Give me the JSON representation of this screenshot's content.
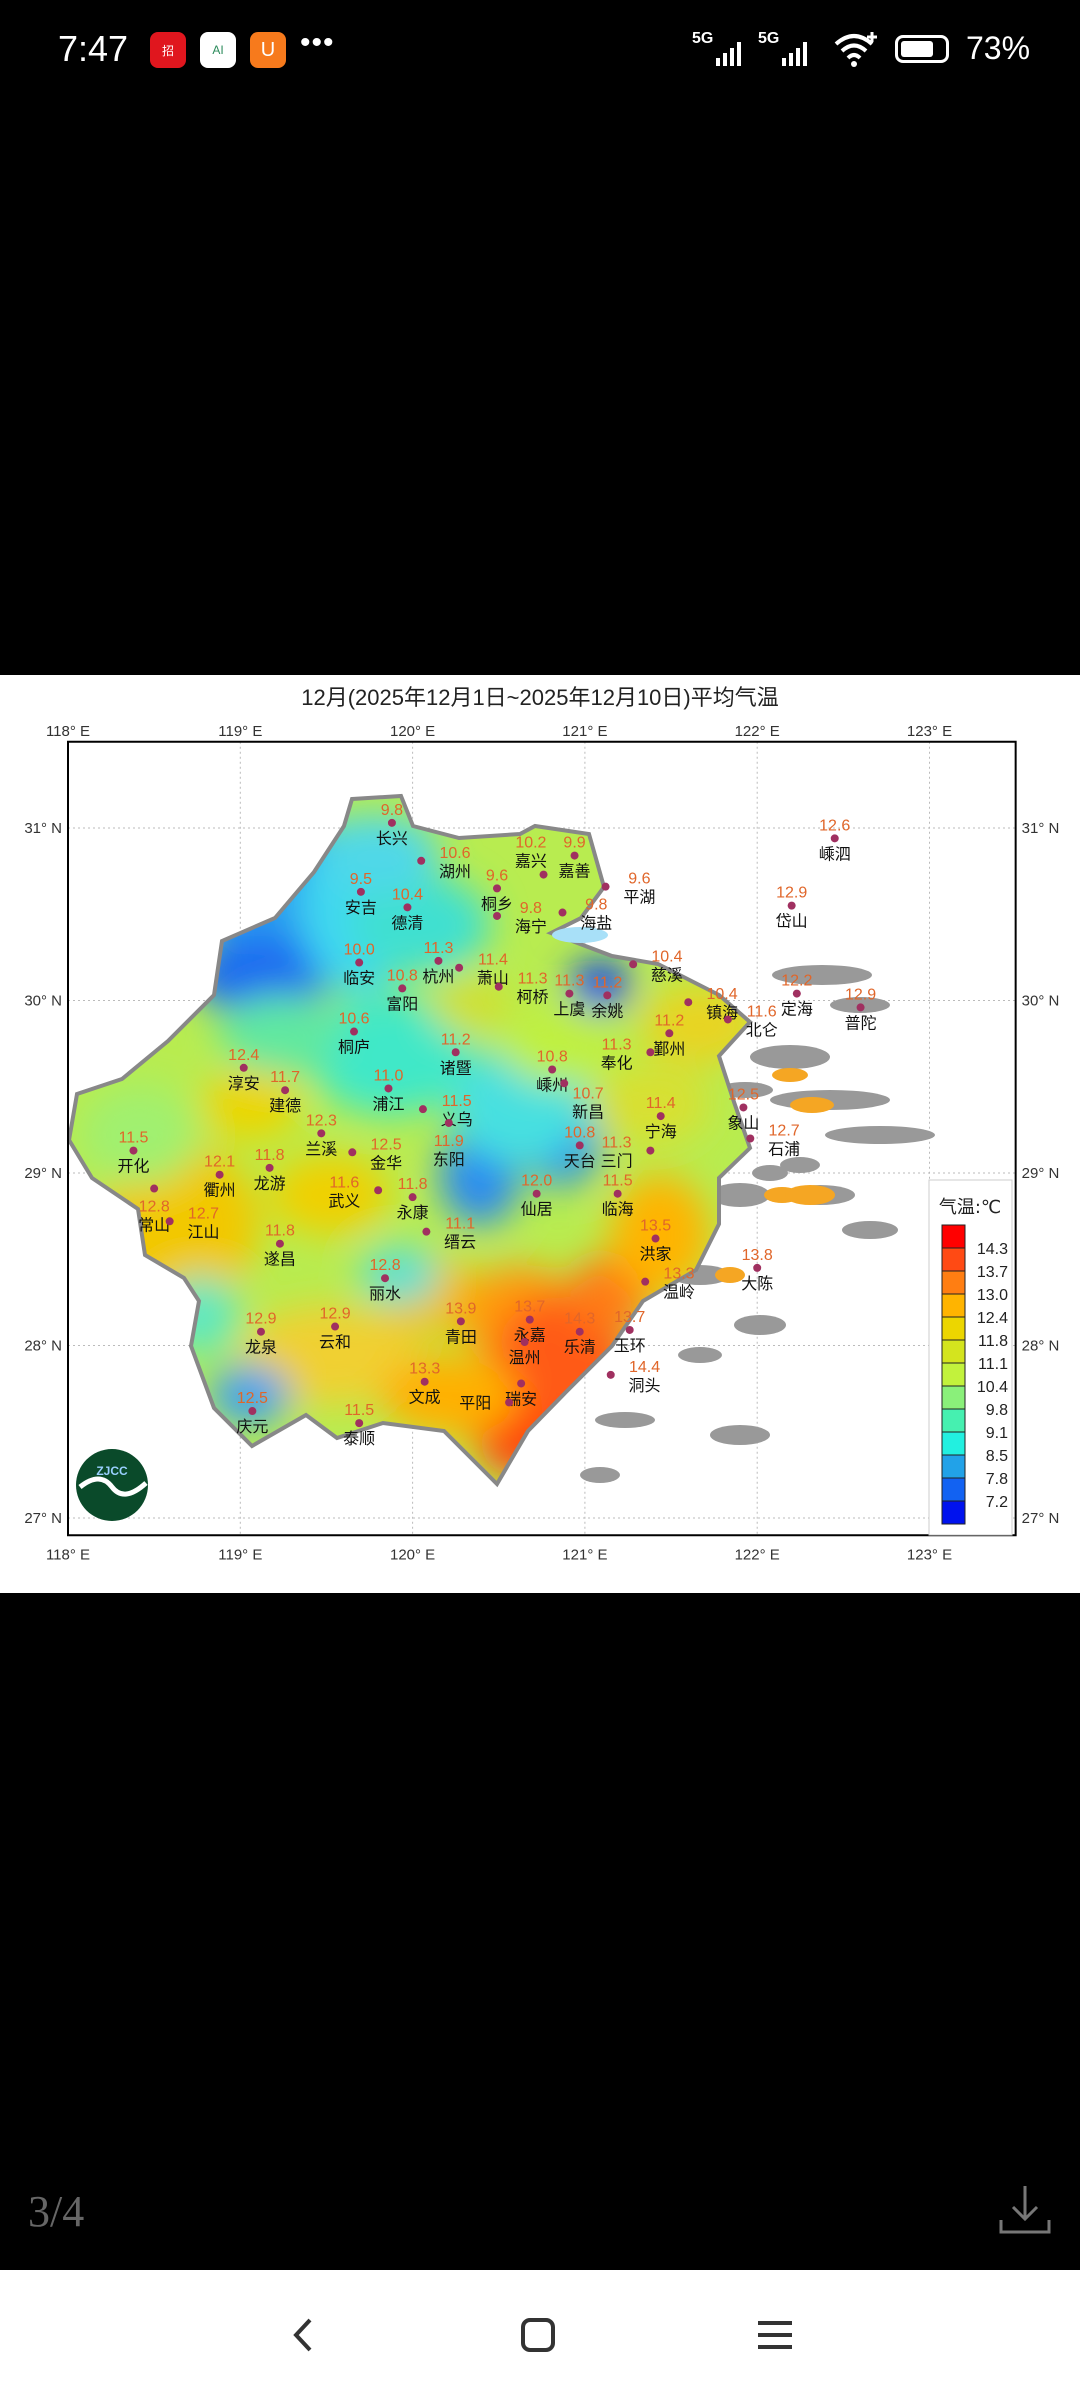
{
  "status_bar": {
    "time": "7:47",
    "notification_icons": [
      "app-red-icon",
      "app-ai-house-icon",
      "app-orange-u-icon"
    ],
    "more": "•••",
    "sim1": "5G",
    "sim2": "5G",
    "battery_percent": "73%",
    "battery_level": 73
  },
  "map": {
    "title": "12月(2025年12月1日~2025年12月10日)平均气温",
    "lon_ticks": [
      "118° E",
      "119° E",
      "120° E",
      "121° E",
      "122° E",
      "123° E"
    ],
    "lat_ticks": [
      "31° N",
      "30° N",
      "29° N",
      "28° N",
      "27° N"
    ],
    "lon_range": [
      118,
      123.5
    ],
    "lat_range": [
      26.9,
      31.5
    ],
    "logo_text": "ZJCC ZHEJIANG CLIMATE CENTER HANGZHOU CHINA",
    "legend": {
      "title": "气温:℃",
      "labels": [
        "14.3",
        "13.7",
        "13.0",
        "12.4",
        "11.8",
        "11.1",
        "10.4",
        "9.8",
        "9.1",
        "8.5",
        "7.8",
        "7.2"
      ],
      "colors": [
        "#ff0000",
        "#ff4a14",
        "#ff7e12",
        "#ffb400",
        "#ecd600",
        "#d4e41e",
        "#c2f23c",
        "#8af07a",
        "#46f0b0",
        "#22f0e0",
        "#22a2e8",
        "#1262f2",
        "#0012ee"
      ]
    },
    "stations": [
      {
        "name": "长兴",
        "value": "9.8",
        "lon": 119.88,
        "lat": 31.03
      },
      {
        "name": "湖州",
        "value": "10.6",
        "lon": 120.05,
        "lat": 30.81
      },
      {
        "name": "安吉",
        "value": "9.5",
        "lon": 119.7,
        "lat": 30.63
      },
      {
        "name": "德清",
        "value": "10.4",
        "lon": 119.97,
        "lat": 30.54
      },
      {
        "name": "桐乡",
        "value": "9.6",
        "lon": 120.49,
        "lat": 30.65
      },
      {
        "name": "海宁",
        "value": "9.8",
        "lon": 120.49,
        "lat": 30.49
      },
      {
        "name": "嘉善",
        "value": "9.9",
        "lon": 120.94,
        "lat": 30.84
      },
      {
        "name": "嘉兴",
        "value": "10.2",
        "lon": 120.76,
        "lat": 30.73
      },
      {
        "name": "平湖",
        "value": "9.6",
        "lon": 121.12,
        "lat": 30.66
      },
      {
        "name": "海盐",
        "value": "9.8",
        "lon": 120.87,
        "lat": 30.51
      },
      {
        "name": "临安",
        "value": "10.0",
        "lon": 119.69,
        "lat": 30.22
      },
      {
        "name": "杭州",
        "value": "11.3",
        "lon": 120.15,
        "lat": 30.23
      },
      {
        "name": "萧山",
        "value": "11.4",
        "lon": 120.27,
        "lat": 30.19
      },
      {
        "name": "柯桥",
        "value": "11.3",
        "lon": 120.5,
        "lat": 30.08
      },
      {
        "name": "富阳",
        "value": "10.8",
        "lon": 119.94,
        "lat": 30.07
      },
      {
        "name": "上虞",
        "value": "11.3",
        "lon": 120.91,
        "lat": 30.04
      },
      {
        "name": "余姚",
        "value": "11.2",
        "lon": 121.13,
        "lat": 30.03
      },
      {
        "name": "慈溪",
        "value": "10.4",
        "lon": 121.28,
        "lat": 30.21
      },
      {
        "name": "镇海",
        "value": "10.4",
        "lon": 121.6,
        "lat": 29.99
      },
      {
        "name": "北仑",
        "value": "11.6",
        "lon": 121.83,
        "lat": 29.89
      },
      {
        "name": "鄞州",
        "value": "11.2",
        "lon": 121.49,
        "lat": 29.81
      },
      {
        "name": "奉化",
        "value": "11.3",
        "lon": 121.38,
        "lat": 29.7
      },
      {
        "name": "桐庐",
        "value": "10.6",
        "lon": 119.66,
        "lat": 29.82
      },
      {
        "name": "诸暨",
        "value": "11.2",
        "lon": 120.25,
        "lat": 29.7
      },
      {
        "name": "嵊州",
        "value": "10.8",
        "lon": 120.81,
        "lat": 29.6
      },
      {
        "name": "新昌",
        "value": "10.7",
        "lon": 120.88,
        "lat": 29.52
      },
      {
        "name": "淳安",
        "value": "12.4",
        "lon": 119.02,
        "lat": 29.61
      },
      {
        "name": "建德",
        "value": "11.7",
        "lon": 119.26,
        "lat": 29.48
      },
      {
        "name": "浦江",
        "value": "11.0",
        "lon": 119.86,
        "lat": 29.49
      },
      {
        "name": "义乌",
        "value": "11.5",
        "lon": 120.06,
        "lat": 29.37
      },
      {
        "name": "东阳",
        "value": "11.9",
        "lon": 120.21,
        "lat": 29.29
      },
      {
        "name": "兰溪",
        "value": "12.3",
        "lon": 119.47,
        "lat": 29.23
      },
      {
        "name": "宁海",
        "value": "11.4",
        "lon": 121.44,
        "lat": 29.33
      },
      {
        "name": "象山",
        "value": "12.5",
        "lon": 121.92,
        "lat": 29.38
      },
      {
        "name": "石浦",
        "value": "12.7",
        "lon": 121.96,
        "lat": 29.2
      },
      {
        "name": "嵊泗",
        "value": "12.6",
        "lon": 122.45,
        "lat": 30.94
      },
      {
        "name": "岱山",
        "value": "12.9",
        "lon": 122.2,
        "lat": 30.55
      },
      {
        "name": "定海",
        "value": "12.2",
        "lon": 122.23,
        "lat": 30.04
      },
      {
        "name": "普陀",
        "value": "12.9",
        "lon": 122.6,
        "lat": 29.96
      },
      {
        "name": "开化",
        "value": "11.5",
        "lon": 118.38,
        "lat": 29.13
      },
      {
        "name": "金华",
        "value": "12.5",
        "lon": 119.65,
        "lat": 29.12
      },
      {
        "name": "衢州",
        "value": "12.1",
        "lon": 118.88,
        "lat": 28.99
      },
      {
        "name": "龙游",
        "value": "11.8",
        "lon": 119.17,
        "lat": 29.03
      },
      {
        "name": "常山",
        "value": "12.8",
        "lon": 118.5,
        "lat": 28.91
      },
      {
        "name": "江山",
        "value": "12.7",
        "lon": 118.59,
        "lat": 28.72
      },
      {
        "name": "武义",
        "value": "11.6",
        "lon": 119.8,
        "lat": 28.9
      },
      {
        "name": "永康",
        "value": "11.8",
        "lon": 120.0,
        "lat": 28.86
      },
      {
        "name": "缙云",
        "value": "11.1",
        "lon": 120.08,
        "lat": 28.66
      },
      {
        "name": "天台",
        "value": "10.8",
        "lon": 120.97,
        "lat": 29.16
      },
      {
        "name": "三门",
        "value": "11.3",
        "lon": 121.38,
        "lat": 29.13
      },
      {
        "name": "仙居",
        "value": "12.0",
        "lon": 120.72,
        "lat": 28.88
      },
      {
        "name": "临海",
        "value": "11.5",
        "lon": 121.19,
        "lat": 28.88
      },
      {
        "name": "遂昌",
        "value": "11.8",
        "lon": 119.23,
        "lat": 28.59
      },
      {
        "name": "丽水",
        "value": "12.8",
        "lon": 119.84,
        "lat": 28.39
      },
      {
        "name": "洪家",
        "value": "13.5",
        "lon": 121.41,
        "lat": 28.62
      },
      {
        "name": "温岭",
        "value": "13.3",
        "lon": 121.35,
        "lat": 28.37
      },
      {
        "name": "大陈",
        "value": "13.8",
        "lon": 122.0,
        "lat": 28.45
      },
      {
        "name": "龙泉",
        "value": "12.9",
        "lon": 119.12,
        "lat": 28.08
      },
      {
        "name": "云和",
        "value": "12.9",
        "lon": 119.55,
        "lat": 28.11
      },
      {
        "name": "青田",
        "value": "13.9",
        "lon": 120.28,
        "lat": 28.14
      },
      {
        "name": "永嘉",
        "value": "13.7",
        "lon": 120.68,
        "lat": 28.15
      },
      {
        "name": "温州",
        "value": "",
        "lon": 120.65,
        "lat": 28.02
      },
      {
        "name": "乐清",
        "value": "14.3",
        "lon": 120.97,
        "lat": 28.08
      },
      {
        "name": "玉环",
        "value": "13.7",
        "lon": 121.26,
        "lat": 28.09
      },
      {
        "name": "洞头",
        "value": "14.4",
        "lon": 121.15,
        "lat": 27.83
      },
      {
        "name": "文成",
        "value": "13.3",
        "lon": 120.07,
        "lat": 27.79
      },
      {
        "name": "瑞安",
        "value": "",
        "lon": 120.63,
        "lat": 27.78
      },
      {
        "name": "平阳",
        "value": "",
        "lon": 120.56,
        "lat": 27.67
      },
      {
        "name": "庆元",
        "value": "12.5",
        "lon": 119.07,
        "lat": 27.62
      },
      {
        "name": "泰顺",
        "value": "11.5",
        "lon": 119.69,
        "lat": 27.55
      }
    ]
  },
  "viewer": {
    "page_indicator": "3/4"
  },
  "nav_bar": {
    "buttons": [
      "back",
      "home",
      "menu"
    ]
  }
}
